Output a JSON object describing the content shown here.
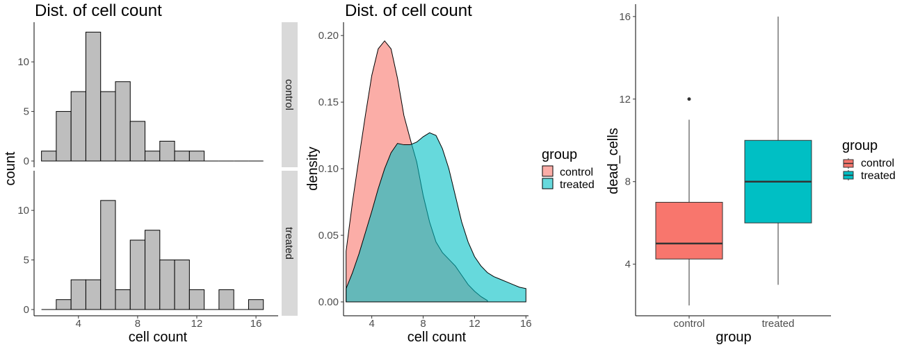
{
  "chart_data": [
    {
      "type": "bar",
      "subtype": "histogram-faceted",
      "title": "Dist. of cell count",
      "xlabel": "cell count",
      "ylabel": "count",
      "xlim": [
        1.0,
        17.5
      ],
      "xticks": [
        4,
        8,
        12,
        16
      ],
      "bin_width": 1,
      "bin_centers": [
        2,
        3,
        4,
        5,
        6,
        7,
        8,
        9,
        10,
        11,
        12,
        13,
        14,
        15,
        16
      ],
      "facets": [
        {
          "name": "control",
          "ylim": [
            0,
            14
          ],
          "yticks": [
            0,
            5,
            10
          ],
          "values": [
            1,
            5,
            7,
            13,
            7,
            8,
            4,
            1,
            2,
            1,
            1,
            0,
            0,
            0,
            0
          ]
        },
        {
          "name": "treated",
          "ylim": [
            0,
            14
          ],
          "yticks": [
            0,
            5,
            10
          ],
          "values": [
            0,
            1,
            3,
            3,
            11,
            2,
            7,
            8,
            5,
            5,
            2,
            0,
            2,
            0,
            1
          ]
        }
      ],
      "bar_color": "#bebebe"
    },
    {
      "type": "area",
      "subtype": "density",
      "title": "Dist. of cell count",
      "xlabel": "cell count",
      "ylabel": "density",
      "xlim": [
        1.8,
        16.2
      ],
      "ylim": [
        0,
        0.21
      ],
      "xticks": [
        4,
        8,
        12,
        16
      ],
      "yticks": [
        0.0,
        0.05,
        0.1,
        0.15,
        0.2
      ],
      "ytick_labels": [
        "0.00",
        "0.05",
        "0.10",
        "0.15",
        "0.20"
      ],
      "series": [
        {
          "name": "control",
          "color": "#f8766d",
          "x": [
            2,
            2.5,
            3,
            3.5,
            4,
            4.5,
            5,
            5.5,
            6,
            6.5,
            7,
            7.5,
            8,
            8.5,
            9,
            9.5,
            10,
            10.5,
            11,
            11.5,
            12,
            12.5,
            13
          ],
          "y": [
            0.038,
            0.075,
            0.108,
            0.14,
            0.17,
            0.19,
            0.196,
            0.19,
            0.168,
            0.14,
            0.122,
            0.105,
            0.08,
            0.06,
            0.045,
            0.037,
            0.032,
            0.027,
            0.02,
            0.013,
            0.008,
            0.004,
            0.001
          ]
        },
        {
          "name": "treated",
          "color": "#00bfc4",
          "x": [
            2,
            2.5,
            3,
            3.5,
            4,
            4.5,
            5,
            5.5,
            6,
            6.5,
            7,
            7.5,
            8,
            8.5,
            9,
            9.5,
            10,
            10.5,
            11,
            11.5,
            12,
            12.5,
            13,
            13.5,
            14,
            14.5,
            15,
            15.5,
            16
          ],
          "y": [
            0.01,
            0.022,
            0.036,
            0.052,
            0.068,
            0.085,
            0.1,
            0.112,
            0.119,
            0.118,
            0.118,
            0.12,
            0.124,
            0.127,
            0.125,
            0.115,
            0.1,
            0.08,
            0.06,
            0.045,
            0.034,
            0.027,
            0.022,
            0.019,
            0.017,
            0.015,
            0.013,
            0.011,
            0.01
          ]
        }
      ],
      "legend": {
        "title": "group",
        "position": "right",
        "entries": [
          "control",
          "treated"
        ]
      }
    },
    {
      "type": "boxplot",
      "xlabel": "group",
      "ylabel": "dead_cells",
      "ylim": [
        1.5,
        16.6
      ],
      "yticks": [
        4,
        8,
        12,
        16
      ],
      "categories": [
        "control",
        "treated"
      ],
      "boxes": [
        {
          "name": "control",
          "color": "#f8766d",
          "whisker_low": 2,
          "q1": 4.25,
          "median": 5,
          "q3": 7,
          "whisker_high": 11,
          "outliers": [
            12
          ]
        },
        {
          "name": "treated",
          "color": "#00bfc4",
          "whisker_low": 3,
          "q1": 6,
          "median": 8,
          "q3": 10,
          "whisker_high": 16,
          "outliers": []
        }
      ],
      "legend": {
        "title": "group",
        "position": "right",
        "entries": [
          "control",
          "treated"
        ]
      }
    }
  ]
}
